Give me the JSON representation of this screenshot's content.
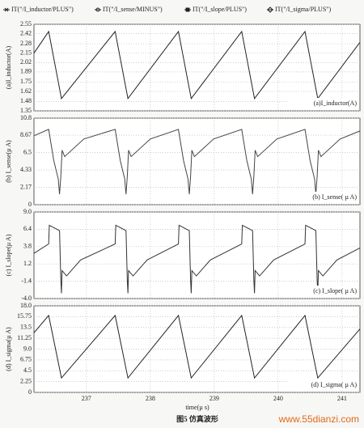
{
  "chart_data": [
    {
      "type": "line",
      "title": "(a)I_inductor(A)",
      "ylabel": "(a)I_inductor(A)",
      "xlim": [
        236.18,
        241.28
      ],
      "xticks": [
        237,
        238,
        239,
        240,
        241
      ],
      "ylim": [
        1.35,
        2.55
      ],
      "yticks": [
        1.35,
        1.48,
        1.62,
        1.75,
        1.89,
        2.02,
        2.15,
        2.28,
        2.42,
        2.55
      ],
      "grid": true,
      "x": [
        236.18,
        236.41,
        236.61,
        237.45,
        237.65,
        238.44,
        238.64,
        239.43,
        239.63,
        240.42,
        240.62,
        241.28
      ],
      "series": [
        {
          "name": "IT(\"/I_inductor/PLUS\")",
          "color": "#222222",
          "values": [
            2.15,
            2.45,
            1.52,
            2.45,
            1.52,
            2.45,
            1.52,
            2.45,
            1.52,
            2.45,
            1.52,
            2.3
          ]
        }
      ]
    },
    {
      "type": "line",
      "title": "(b) I_sense( µ A)",
      "ylabel": "(b) I_sense(µ A)",
      "xlim": [
        236.18,
        241.28
      ],
      "xticks": [
        237,
        238,
        239,
        240,
        241
      ],
      "ylim": [
        0,
        10.8
      ],
      "yticks": [
        0,
        2.17,
        4.33,
        6.5,
        8.67,
        10.8
      ],
      "grid": true,
      "x": [
        236.18,
        236.41,
        236.49,
        236.56,
        236.58,
        236.6,
        236.62,
        236.66,
        236.96,
        237.45,
        237.53,
        237.6,
        237.62,
        237.64,
        237.66,
        237.7,
        238.0,
        238.44,
        238.52,
        238.59,
        238.61,
        238.63,
        238.65,
        238.69,
        238.99,
        239.43,
        239.51,
        239.58,
        239.6,
        239.62,
        239.64,
        239.68,
        239.98,
        240.42,
        240.5,
        240.57,
        240.59,
        240.61,
        240.63,
        240.67,
        240.97,
        241.28
      ],
      "series": [
        {
          "name": "IT(\"/I_sense/MINUS\")",
          "color": "#444444",
          "values": [
            8.6,
            9.4,
            5.5,
            3.2,
            1.3,
            3.5,
            6.8,
            6.0,
            8.2,
            9.4,
            5.5,
            3.2,
            1.3,
            3.5,
            6.8,
            6.0,
            8.2,
            9.4,
            5.5,
            3.2,
            1.3,
            3.5,
            6.8,
            6.0,
            8.2,
            9.4,
            5.5,
            3.2,
            1.3,
            3.5,
            6.8,
            6.0,
            8.2,
            9.4,
            5.5,
            3.2,
            1.3,
            3.5,
            6.8,
            6.0,
            8.2,
            9.2
          ]
        }
      ]
    },
    {
      "type": "line",
      "title": "(c) I_slope( µ A)",
      "ylabel": "(c) I_slope(µ A)",
      "xlim": [
        236.18,
        241.28
      ],
      "xticks": [
        237,
        238,
        239,
        240,
        241
      ],
      "ylim": [
        -4,
        9
      ],
      "yticks": [
        {
          "value": -4,
          "label": "-4.0"
        },
        -1.4,
        1.2,
        3.8,
        6.4,
        {
          "value": 9,
          "label": "9.0"
        }
      ],
      "grid": true,
      "x": [
        236.18,
        236.41,
        236.42,
        236.58,
        236.6,
        236.61,
        236.62,
        236.69,
        236.91,
        237.45,
        237.46,
        237.62,
        237.64,
        237.65,
        237.66,
        237.73,
        237.95,
        238.44,
        238.45,
        238.61,
        238.63,
        238.64,
        238.65,
        238.72,
        238.94,
        239.43,
        239.44,
        239.6,
        239.62,
        239.63,
        239.64,
        239.71,
        239.93,
        240.42,
        240.43,
        240.59,
        240.61,
        240.62,
        240.63,
        240.7,
        240.92,
        241.28
      ],
      "series": [
        {
          "name": "IT(\"/I_slope/PLUS\")",
          "color": "#333333",
          "values": [
            2.8,
            4.2,
            7.0,
            6.2,
            -1.2,
            -3.2,
            0.2,
            -0.6,
            1.8,
            4.2,
            7.0,
            6.2,
            -1.2,
            -3.2,
            0.2,
            -0.6,
            1.8,
            4.2,
            7.0,
            6.2,
            -1.2,
            -3.2,
            0.2,
            -0.6,
            1.8,
            4.2,
            7.0,
            6.2,
            -1.2,
            -3.2,
            0.2,
            -0.6,
            1.8,
            4.2,
            7.0,
            6.2,
            -1.2,
            -3.2,
            0.2,
            -0.6,
            1.8,
            3.6
          ]
        }
      ]
    },
    {
      "type": "line",
      "title": "(d) I_sigma( µ A)",
      "ylabel": "(d) I_sigma(µ A)",
      "xlabel": "time(µ s)",
      "xlim": [
        236.18,
        241.28
      ],
      "xticks": [
        237,
        238,
        239,
        240,
        241
      ],
      "ylim": [
        0,
        18
      ],
      "yticks": [
        0,
        2.25,
        4.5,
        6.75,
        {
          "value": 9,
          "label": "9.0"
        },
        11.25,
        13.5,
        15.75,
        {
          "value": 18,
          "label": "18.0"
        }
      ],
      "grid": true,
      "x": [
        236.18,
        236.41,
        236.61,
        237.45,
        237.65,
        238.44,
        238.64,
        239.43,
        239.63,
        240.42,
        240.62,
        241.28
      ],
      "series": [
        {
          "name": "IT(\"/I_sigma/PLUS\")",
          "color": "#222222",
          "values": [
            12.4,
            16.0,
            3.0,
            16.0,
            3.0,
            16.0,
            3.0,
            16.0,
            3.0,
            16.0,
            3.0,
            13.2
          ]
        }
      ]
    }
  ],
  "caption": "图5  仿真波形",
  "watermark": "www.55dianzi.com"
}
